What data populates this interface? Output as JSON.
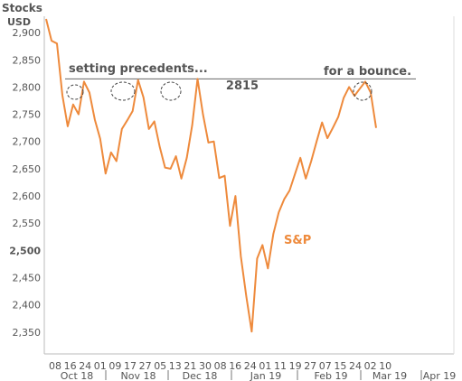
{
  "chart_data": {
    "type": "line",
    "title": "Stocks",
    "ylabel": "USD",
    "ylim": [
      2310,
      2930
    ],
    "y_ticks": [
      "2,350",
      "2,400",
      "2,450",
      "2,500",
      "2,550",
      "2,600",
      "2,650",
      "2,700",
      "2,750",
      "2,800",
      "2,850",
      "2,900"
    ],
    "y_tick_values": [
      2350,
      2400,
      2450,
      2500,
      2550,
      2600,
      2650,
      2700,
      2750,
      2800,
      2850,
      2900
    ],
    "x_tick_days": [
      "08",
      "16",
      "24",
      "01",
      "09",
      "17",
      "27",
      "05",
      "13",
      "21",
      "30",
      "08",
      "16",
      "24",
      "01",
      "11",
      "19",
      "27",
      "07",
      "15",
      "24",
      "02",
      "10"
    ],
    "month_labels": [
      "Oct 18",
      "Nov 18",
      "Dec 18",
      "Jan 19",
      "Feb 19",
      "Mar 19",
      "Apr 19"
    ],
    "series": [
      {
        "name": "S&P",
        "color": "#ee8a3c",
        "values": [
          2925,
          2885,
          2880,
          2785,
          2728,
          2768,
          2750,
          2810,
          2790,
          2740,
          2705,
          2641,
          2680,
          2664,
          2723,
          2739,
          2756,
          2813,
          2781,
          2723,
          2737,
          2690,
          2652,
          2650,
          2673,
          2632,
          2670,
          2730,
          2815,
          2750,
          2698,
          2700,
          2633,
          2637,
          2545,
          2600,
          2489,
          2416,
          2351,
          2485,
          2510,
          2467,
          2530,
          2570,
          2594,
          2610,
          2640,
          2670,
          2632,
          2664,
          2700,
          2735,
          2706,
          2725,
          2745,
          2780,
          2800,
          2784,
          2797,
          2810,
          2790,
          2725
        ]
      }
    ],
    "reference_line": {
      "value": 2815,
      "label": "2815"
    },
    "annotations": [
      "setting precedents...",
      "for a bounce."
    ]
  }
}
